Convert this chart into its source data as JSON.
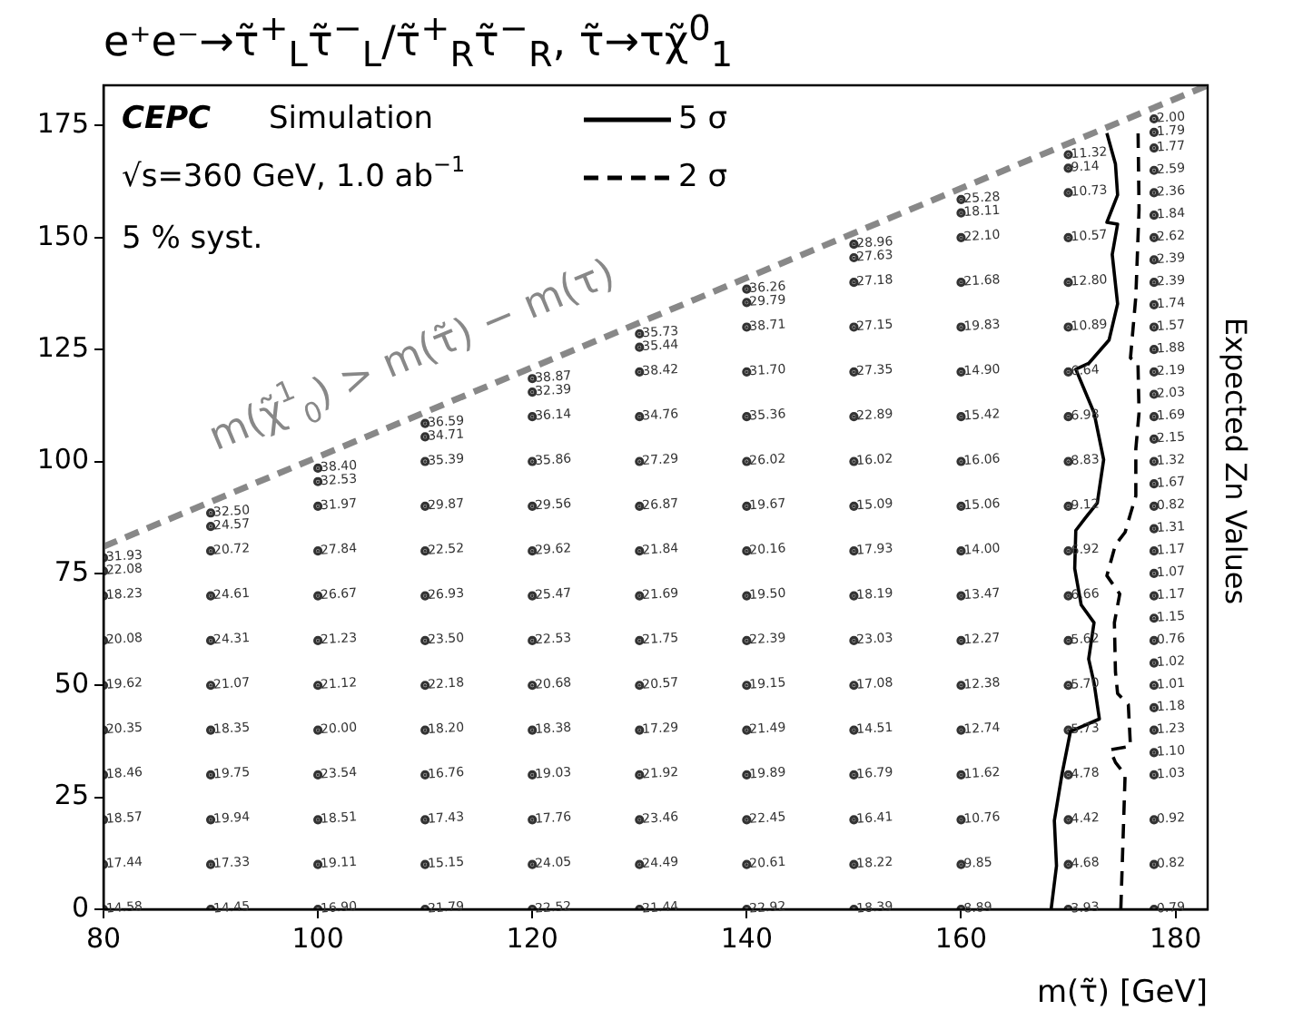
{
  "chart_data": {
    "type": "line",
    "title": "e⁺e⁻→τ̃$^{+}$$_{L}$τ̃$^{−}$$_{L}$/τ̃$^{+}$$_{R}$τ̃$^{−}$$_{R}$, τ̃→τχ̃$^{0}$$_{1}$",
    "xlabel": "m(τ̃) [GeV]",
    "xlim": [
      80,
      183
    ],
    "xticks": [
      80,
      100,
      120,
      140,
      160,
      180
    ],
    "ylim": [
      0,
      184
    ],
    "yticks": [
      0,
      25,
      50,
      75,
      100,
      125,
      150,
      175
    ],
    "legend": "top",
    "marker": "none",
    "series": [
      {
        "color": "#888888",
        "line_style": "dashed",
        "x": [
          80,
          183
        ],
        "values": [
          81,
          184
        ]
      },
      {
        "name": "5 σ",
        "color": "#000000",
        "line_style": "solid",
        "x": [
          168.4,
          168.9,
          168.7,
          169.4,
          170.2,
          172.9,
          172.4,
          171.9,
          172.4,
          171.2,
          170.6,
          170.7,
          171.6,
          172.7,
          173.3,
          172.4,
          170.7,
          171.9,
          173.8,
          174.6,
          174.1,
          174.6,
          173.6,
          174.6,
          174.4,
          173.6
        ],
        "values": [
          0,
          9.7,
          19.8,
          30,
          39.7,
          42.5,
          50.6,
          55.9,
          64,
          68,
          76.1,
          84.6,
          87.4,
          90.7,
          100.4,
          110.9,
          120.6,
          121.9,
          127.1,
          135.2,
          146.2,
          153,
          153.4,
          159.5,
          166.4,
          173.3
        ]
      },
      {
        "name": "2 σ",
        "color": "#000000",
        "line_style": "dashed",
        "x": [
          174.9,
          175.3,
          174.4,
          173.9,
          175.8,
          175.6,
          174.6,
          174.4,
          174.3,
          174.8,
          173.6,
          174.4,
          175.3,
          175.8,
          176.3,
          176.3,
          176.6,
          176.5,
          175.8,
          176.3,
          176.6,
          176.5
        ],
        "values": [
          0,
          30,
          32.8,
          35.6,
          36.4,
          45.7,
          48.2,
          53,
          64,
          70.4,
          74.5,
          81.4,
          84.2,
          88.3,
          92.3,
          102.8,
          110.9,
          121.9,
          123.1,
          136.8,
          156.3,
          175.3
        ]
      },
      {
        "type": "scatter",
        "color": "#333333",
        "marker": "circle",
        "x": [
          80,
          80,
          80,
          80,
          80,
          80,
          80,
          80,
          80,
          80,
          90,
          90,
          90,
          90,
          90,
          90,
          90,
          90,
          90,
          90,
          90,
          100,
          100,
          100,
          100,
          100,
          100,
          100,
          100,
          100,
          100,
          100,
          100,
          110,
          110,
          110,
          110,
          110,
          110,
          110,
          110,
          110,
          110,
          110,
          110,
          110,
          120,
          120,
          120,
          120,
          120,
          120,
          120,
          120,
          120,
          120,
          120,
          120,
          120,
          120,
          130,
          130,
          130,
          130,
          130,
          130,
          130,
          130,
          130,
          130,
          130,
          130,
          130,
          130,
          130,
          140,
          140,
          140,
          140,
          140,
          140,
          140,
          140,
          140,
          140,
          140,
          140,
          140,
          140,
          140,
          140,
          150,
          150,
          150,
          150,
          150,
          150,
          150,
          150,
          150,
          150,
          150,
          150,
          150,
          150,
          150,
          150,
          150,
          160,
          160,
          160,
          160,
          160,
          160,
          160,
          160,
          160,
          160,
          160,
          160,
          160,
          160,
          160,
          160,
          160,
          160,
          170,
          170,
          170,
          170,
          170,
          170,
          170,
          170,
          170,
          170,
          170,
          170,
          170,
          170,
          170,
          170,
          170,
          170,
          170,
          178,
          178,
          178,
          178,
          178,
          178,
          178,
          178,
          178,
          178,
          178,
          178,
          178,
          178,
          178,
          178,
          178,
          178,
          178,
          178,
          178,
          178,
          178,
          178,
          178,
          178,
          178,
          178,
          178,
          178,
          178,
          178,
          178,
          178
        ],
        "values": [
          0,
          10,
          20,
          30,
          40,
          50,
          60,
          70,
          75.5,
          78.5,
          0,
          10,
          20,
          30,
          40,
          50,
          60,
          70,
          80,
          85.5,
          88.5,
          0,
          10,
          20,
          30,
          40,
          50,
          60,
          70,
          80,
          90,
          95.5,
          98.5,
          0,
          10,
          20,
          30,
          40,
          50,
          60,
          70,
          80,
          90,
          100,
          105.5,
          108.5,
          0,
          10,
          20,
          30,
          40,
          50,
          60,
          70,
          80,
          90,
          100,
          110,
          115.5,
          118.5,
          0,
          10,
          20,
          30,
          40,
          50,
          60,
          70,
          80,
          90,
          100,
          110,
          120,
          125.5,
          128.5,
          0,
          10,
          20,
          30,
          40,
          50,
          60,
          70,
          80,
          90,
          100,
          110,
          120,
          130,
          135.5,
          138.5,
          0,
          10,
          20,
          30,
          40,
          50,
          60,
          70,
          80,
          90,
          100,
          110,
          120,
          130,
          140,
          145.5,
          148.5,
          0,
          10,
          20,
          30,
          40,
          50,
          60,
          70,
          80,
          90,
          100,
          110,
          120,
          130,
          140,
          150,
          155.5,
          158.5,
          0,
          10,
          20,
          30,
          40,
          50,
          60,
          70,
          80,
          90,
          100,
          110,
          120,
          130,
          140,
          150,
          160,
          165.5,
          168.5,
          0,
          10,
          20,
          30,
          35,
          40,
          45,
          50,
          55,
          60,
          65,
          70,
          75,
          80,
          85,
          90,
          95,
          100,
          105,
          110,
          115,
          120,
          125,
          130,
          135,
          140,
          145,
          150,
          155,
          160,
          165,
          170,
          173.5,
          176.5
        ]
      }
    ],
    "annotations": [
      "CEPC",
      "Simulation",
      "√s=360 GeV, 1.0 ab$^{−1}$",
      "5 % syst.",
      "Expected Zn Values",
      "m(χ̃$^{1}$$_{0}$) > m(τ̃) − m(τ)",
      {
        "text": "14.58",
        "x": 80,
        "y": 0
      },
      {
        "text": "17.44",
        "x": 80,
        "y": 10
      },
      {
        "text": "18.57",
        "x": 80,
        "y": 20
      },
      {
        "text": "18.46",
        "x": 80,
        "y": 30
      },
      {
        "text": "20.35",
        "x": 80,
        "y": 40
      },
      {
        "text": "19.62",
        "x": 80,
        "y": 50
      },
      {
        "text": "20.08",
        "x": 80,
        "y": 60
      },
      {
        "text": "18.23",
        "x": 80,
        "y": 70
      },
      {
        "text": "22.08",
        "x": 80,
        "y": 75.5
      },
      {
        "text": "31.93",
        "x": 80,
        "y": 78.5
      },
      {
        "text": "14.45",
        "x": 90,
        "y": 0
      },
      {
        "text": "17.33",
        "x": 90,
        "y": 10
      },
      {
        "text": "19.94",
        "x": 90,
        "y": 20
      },
      {
        "text": "19.75",
        "x": 90,
        "y": 30
      },
      {
        "text": "18.35",
        "x": 90,
        "y": 40
      },
      {
        "text": "21.07",
        "x": 90,
        "y": 50
      },
      {
        "text": "24.31",
        "x": 90,
        "y": 60
      },
      {
        "text": "24.61",
        "x": 90,
        "y": 70
      },
      {
        "text": "20.72",
        "x": 90,
        "y": 80
      },
      {
        "text": "24.57",
        "x": 90,
        "y": 85.5
      },
      {
        "text": "32.50",
        "x": 90,
        "y": 88.5
      },
      {
        "text": "16.90",
        "x": 100,
        "y": 0
      },
      {
        "text": "19.11",
        "x": 100,
        "y": 10
      },
      {
        "text": "18.51",
        "x": 100,
        "y": 20
      },
      {
        "text": "23.54",
        "x": 100,
        "y": 30
      },
      {
        "text": "20.00",
        "x": 100,
        "y": 40
      },
      {
        "text": "21.12",
        "x": 100,
        "y": 50
      },
      {
        "text": "21.23",
        "x": 100,
        "y": 60
      },
      {
        "text": "26.67",
        "x": 100,
        "y": 70
      },
      {
        "text": "27.84",
        "x": 100,
        "y": 80
      },
      {
        "text": "31.97",
        "x": 100,
        "y": 90
      },
      {
        "text": "32.53",
        "x": 100,
        "y": 95.5
      },
      {
        "text": "38.40",
        "x": 100,
        "y": 98.5
      },
      {
        "text": "21.79",
        "x": 110,
        "y": 0
      },
      {
        "text": "15.15",
        "x": 110,
        "y": 10
      },
      {
        "text": "17.43",
        "x": 110,
        "y": 20
      },
      {
        "text": "16.76",
        "x": 110,
        "y": 30
      },
      {
        "text": "18.20",
        "x": 110,
        "y": 40
      },
      {
        "text": "22.18",
        "x": 110,
        "y": 50
      },
      {
        "text": "23.50",
        "x": 110,
        "y": 60
      },
      {
        "text": "26.93",
        "x": 110,
        "y": 70
      },
      {
        "text": "22.52",
        "x": 110,
        "y": 80
      },
      {
        "text": "29.87",
        "x": 110,
        "y": 90
      },
      {
        "text": "35.39",
        "x": 110,
        "y": 100
      },
      {
        "text": "34.71",
        "x": 110,
        "y": 105.5
      },
      {
        "text": "36.59",
        "x": 110,
        "y": 108.5
      },
      {
        "text": "22.52",
        "x": 120,
        "y": 0
      },
      {
        "text": "24.05",
        "x": 120,
        "y": 10
      },
      {
        "text": "17.76",
        "x": 120,
        "y": 20
      },
      {
        "text": "19.03",
        "x": 120,
        "y": 30
      },
      {
        "text": "18.38",
        "x": 120,
        "y": 40
      },
      {
        "text": "20.68",
        "x": 120,
        "y": 50
      },
      {
        "text": "22.53",
        "x": 120,
        "y": 60
      },
      {
        "text": "25.47",
        "x": 120,
        "y": 70
      },
      {
        "text": "29.62",
        "x": 120,
        "y": 80
      },
      {
        "text": "29.56",
        "x": 120,
        "y": 90
      },
      {
        "text": "35.86",
        "x": 120,
        "y": 100
      },
      {
        "text": "36.14",
        "x": 120,
        "y": 110
      },
      {
        "text": "32.39",
        "x": 120,
        "y": 115.5
      },
      {
        "text": "38.87",
        "x": 120,
        "y": 118.5
      },
      {
        "text": "21.44",
        "x": 130,
        "y": 0
      },
      {
        "text": "24.49",
        "x": 130,
        "y": 10
      },
      {
        "text": "23.46",
        "x": 130,
        "y": 20
      },
      {
        "text": "21.92",
        "x": 130,
        "y": 30
      },
      {
        "text": "17.29",
        "x": 130,
        "y": 40
      },
      {
        "text": "20.57",
        "x": 130,
        "y": 50
      },
      {
        "text": "21.75",
        "x": 130,
        "y": 60
      },
      {
        "text": "21.69",
        "x": 130,
        "y": 70
      },
      {
        "text": "21.84",
        "x": 130,
        "y": 80
      },
      {
        "text": "26.87",
        "x": 130,
        "y": 90
      },
      {
        "text": "27.29",
        "x": 130,
        "y": 100
      },
      {
        "text": "34.76",
        "x": 130,
        "y": 110
      },
      {
        "text": "38.42",
        "x": 130,
        "y": 120
      },
      {
        "text": "35.44",
        "x": 130,
        "y": 125.5
      },
      {
        "text": "35.73",
        "x": 130,
        "y": 128.5
      },
      {
        "text": "22.92",
        "x": 140,
        "y": 0
      },
      {
        "text": "20.61",
        "x": 140,
        "y": 10
      },
      {
        "text": "22.45",
        "x": 140,
        "y": 20
      },
      {
        "text": "19.89",
        "x": 140,
        "y": 30
      },
      {
        "text": "21.49",
        "x": 140,
        "y": 40
      },
      {
        "text": "19.15",
        "x": 140,
        "y": 50
      },
      {
        "text": "22.39",
        "x": 140,
        "y": 60
      },
      {
        "text": "19.50",
        "x": 140,
        "y": 70
      },
      {
        "text": "20.16",
        "x": 140,
        "y": 80
      },
      {
        "text": "19.67",
        "x": 140,
        "y": 90
      },
      {
        "text": "26.02",
        "x": 140,
        "y": 100
      },
      {
        "text": "35.36",
        "x": 140,
        "y": 110
      },
      {
        "text": "31.70",
        "x": 140,
        "y": 120
      },
      {
        "text": "38.71",
        "x": 140,
        "y": 130
      },
      {
        "text": "29.79",
        "x": 140,
        "y": 135.5
      },
      {
        "text": "36.26",
        "x": 140,
        "y": 138.5
      },
      {
        "text": "18.39",
        "x": 150,
        "y": 0
      },
      {
        "text": "18.22",
        "x": 150,
        "y": 10
      },
      {
        "text": "16.41",
        "x": 150,
        "y": 20
      },
      {
        "text": "16.79",
        "x": 150,
        "y": 30
      },
      {
        "text": "14.51",
        "x": 150,
        "y": 40
      },
      {
        "text": "17.08",
        "x": 150,
        "y": 50
      },
      {
        "text": "23.03",
        "x": 150,
        "y": 60
      },
      {
        "text": "18.19",
        "x": 150,
        "y": 70
      },
      {
        "text": "17.93",
        "x": 150,
        "y": 80
      },
      {
        "text": "15.09",
        "x": 150,
        "y": 90
      },
      {
        "text": "16.02",
        "x": 150,
        "y": 100
      },
      {
        "text": "22.89",
        "x": 150,
        "y": 110
      },
      {
        "text": "27.35",
        "x": 150,
        "y": 120
      },
      {
        "text": "27.15",
        "x": 150,
        "y": 130
      },
      {
        "text": "27.18",
        "x": 150,
        "y": 140
      },
      {
        "text": "27.63",
        "x": 150,
        "y": 145.5
      },
      {
        "text": "28.96",
        "x": 150,
        "y": 148.5
      },
      {
        "text": "8.89",
        "x": 160,
        "y": 0
      },
      {
        "text": "9.85",
        "x": 160,
        "y": 10
      },
      {
        "text": "10.76",
        "x": 160,
        "y": 20
      },
      {
        "text": "11.62",
        "x": 160,
        "y": 30
      },
      {
        "text": "12.74",
        "x": 160,
        "y": 40
      },
      {
        "text": "12.38",
        "x": 160,
        "y": 50
      },
      {
        "text": "12.27",
        "x": 160,
        "y": 60
      },
      {
        "text": "13.47",
        "x": 160,
        "y": 70
      },
      {
        "text": "14.00",
        "x": 160,
        "y": 80
      },
      {
        "text": "15.06",
        "x": 160,
        "y": 90
      },
      {
        "text": "16.06",
        "x": 160,
        "y": 100
      },
      {
        "text": "15.42",
        "x": 160,
        "y": 110
      },
      {
        "text": "14.90",
        "x": 160,
        "y": 120
      },
      {
        "text": "19.83",
        "x": 160,
        "y": 130
      },
      {
        "text": "21.68",
        "x": 160,
        "y": 140
      },
      {
        "text": "22.10",
        "x": 160,
        "y": 150
      },
      {
        "text": "18.11",
        "x": 160,
        "y": 155.5
      },
      {
        "text": "25.28",
        "x": 160,
        "y": 158.5
      },
      {
        "text": "3.93",
        "x": 170,
        "y": 0
      },
      {
        "text": "4.68",
        "x": 170,
        "y": 10
      },
      {
        "text": "4.42",
        "x": 170,
        "y": 20
      },
      {
        "text": "4.78",
        "x": 170,
        "y": 30
      },
      {
        "text": "5.73",
        "x": 170,
        "y": 40
      },
      {
        "text": "5.70",
        "x": 170,
        "y": 50
      },
      {
        "text": "5.62",
        "x": 170,
        "y": 60
      },
      {
        "text": "6.66",
        "x": 170,
        "y": 70
      },
      {
        "text": "6.92",
        "x": 170,
        "y": 80
      },
      {
        "text": "9.12",
        "x": 170,
        "y": 90
      },
      {
        "text": "8.83",
        "x": 170,
        "y": 100
      },
      {
        "text": "6.98",
        "x": 170,
        "y": 110
      },
      {
        "text": "6.64",
        "x": 170,
        "y": 120
      },
      {
        "text": "10.89",
        "x": 170,
        "y": 130
      },
      {
        "text": "12.80",
        "x": 170,
        "y": 140
      },
      {
        "text": "10.57",
        "x": 170,
        "y": 150
      },
      {
        "text": "10.73",
        "x": 170,
        "y": 160
      },
      {
        "text": "9.14",
        "x": 170,
        "y": 165.5
      },
      {
        "text": "11.32",
        "x": 170,
        "y": 168.5
      },
      {
        "text": "0.79",
        "x": 178,
        "y": 0
      },
      {
        "text": "0.82",
        "x": 178,
        "y": 10
      },
      {
        "text": "0.92",
        "x": 178,
        "y": 20
      },
      {
        "text": "1.03",
        "x": 178,
        "y": 30
      },
      {
        "text": "1.10",
        "x": 178,
        "y": 35
      },
      {
        "text": "1.23",
        "x": 178,
        "y": 40
      },
      {
        "text": "1.18",
        "x": 178,
        "y": 45
      },
      {
        "text": "1.01",
        "x": 178,
        "y": 50
      },
      {
        "text": "1.02",
        "x": 178,
        "y": 55
      },
      {
        "text": "0.76",
        "x": 178,
        "y": 60
      },
      {
        "text": "1.15",
        "x": 178,
        "y": 65
      },
      {
        "text": "1.17",
        "x": 178,
        "y": 70
      },
      {
        "text": "1.07",
        "x": 178,
        "y": 75
      },
      {
        "text": "1.17",
        "x": 178,
        "y": 80
      },
      {
        "text": "1.31",
        "x": 178,
        "y": 85
      },
      {
        "text": "0.82",
        "x": 178,
        "y": 90
      },
      {
        "text": "1.67",
        "x": 178,
        "y": 95
      },
      {
        "text": "1.32",
        "x": 178,
        "y": 100
      },
      {
        "text": "2.15",
        "x": 178,
        "y": 105
      },
      {
        "text": "1.69",
        "x": 178,
        "y": 110
      },
      {
        "text": "2.03",
        "x": 178,
        "y": 115
      },
      {
        "text": "2.19",
        "x": 178,
        "y": 120
      },
      {
        "text": "1.88",
        "x": 178,
        "y": 125
      },
      {
        "text": "1.57",
        "x": 178,
        "y": 130
      },
      {
        "text": "1.74",
        "x": 178,
        "y": 135
      },
      {
        "text": "2.39",
        "x": 178,
        "y": 140
      },
      {
        "text": "2.39",
        "x": 178,
        "y": 145
      },
      {
        "text": "2.62",
        "x": 178,
        "y": 150
      },
      {
        "text": "1.84",
        "x": 178,
        "y": 155
      },
      {
        "text": "2.36",
        "x": 178,
        "y": 160
      },
      {
        "text": "2.59",
        "x": 178,
        "y": 165
      },
      {
        "text": "1.77",
        "x": 178,
        "y": 170
      },
      {
        "text": "1.79",
        "x": 178,
        "y": 173.5
      },
      {
        "text": "2.00",
        "x": 178,
        "y": 176.5
      }
    ]
  }
}
